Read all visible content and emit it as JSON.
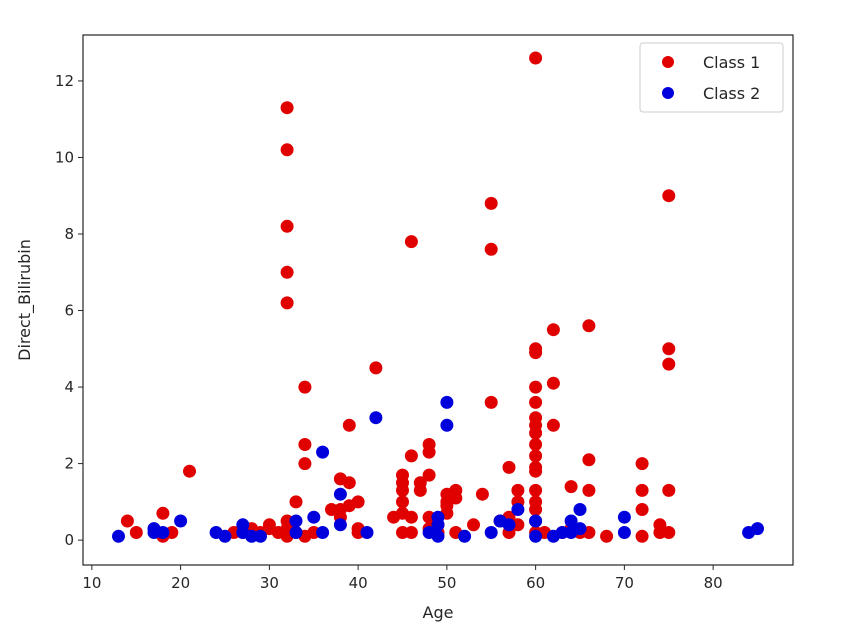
{
  "chart_data": {
    "type": "scatter",
    "title": "",
    "xlabel": "Age",
    "ylabel": "Direct_Bilirubin",
    "xlim": [
      9,
      89
    ],
    "ylim": [
      -0.65,
      13.2
    ],
    "xticks": [
      10,
      20,
      30,
      40,
      50,
      60,
      70,
      80
    ],
    "yticks": [
      0,
      2,
      4,
      6,
      8,
      10,
      12
    ],
    "grid": false,
    "legend": "top-right",
    "series": [
      {
        "name": "Class 1",
        "color": "#e00000",
        "points": [
          [
            14,
            0.5
          ],
          [
            15,
            0.2
          ],
          [
            18,
            0.7
          ],
          [
            18,
            0.1
          ],
          [
            19,
            0.2
          ],
          [
            21,
            1.8
          ],
          [
            26,
            0.2
          ],
          [
            27,
            0.2
          ],
          [
            28,
            0.3
          ],
          [
            29,
            0.2
          ],
          [
            30,
            0.3
          ],
          [
            30,
            0.4
          ],
          [
            31,
            0.2
          ],
          [
            32,
            0.1
          ],
          [
            32,
            0.2
          ],
          [
            32,
            0.3
          ],
          [
            32,
            0.5
          ],
          [
            32,
            11.3
          ],
          [
            32,
            10.2
          ],
          [
            32,
            8.2
          ],
          [
            32,
            7.0
          ],
          [
            32,
            6.2
          ],
          [
            33,
            1.0
          ],
          [
            33,
            0.2
          ],
          [
            34,
            0.1
          ],
          [
            34,
            4.0
          ],
          [
            34,
            2.5
          ],
          [
            34,
            2.0
          ],
          [
            35,
            0.2
          ],
          [
            37,
            0.8
          ],
          [
            38,
            1.6
          ],
          [
            38,
            0.8
          ],
          [
            38,
            0.6
          ],
          [
            39,
            3.0
          ],
          [
            39,
            1.5
          ],
          [
            39,
            0.9
          ],
          [
            40,
            1.0
          ],
          [
            40,
            0.3
          ],
          [
            40,
            0.2
          ],
          [
            42,
            4.5
          ],
          [
            44,
            0.6
          ],
          [
            45,
            1.7
          ],
          [
            45,
            1.5
          ],
          [
            45,
            1.3
          ],
          [
            45,
            1.0
          ],
          [
            45,
            0.7
          ],
          [
            45,
            0.2
          ],
          [
            46,
            7.8
          ],
          [
            46,
            2.2
          ],
          [
            46,
            0.6
          ],
          [
            46,
            0.2
          ],
          [
            47,
            1.5
          ],
          [
            47,
            1.3
          ],
          [
            48,
            2.5
          ],
          [
            48,
            2.3
          ],
          [
            48,
            1.7
          ],
          [
            48,
            0.6
          ],
          [
            48,
            0.3
          ],
          [
            49,
            0.4
          ],
          [
            49,
            0.2
          ],
          [
            50,
            1.2
          ],
          [
            50,
            1.0
          ],
          [
            50,
            0.9
          ],
          [
            50,
            0.7
          ],
          [
            51,
            1.3
          ],
          [
            51,
            1.1
          ],
          [
            51,
            0.2
          ],
          [
            53,
            0.4
          ],
          [
            54,
            1.2
          ],
          [
            55,
            8.8
          ],
          [
            55,
            7.6
          ],
          [
            55,
            3.6
          ],
          [
            56,
            0.5
          ],
          [
            57,
            1.9
          ],
          [
            57,
            0.6
          ],
          [
            57,
            0.2
          ],
          [
            58,
            1.3
          ],
          [
            58,
            1.0
          ],
          [
            58,
            0.4
          ],
          [
            60,
            12.6
          ],
          [
            60,
            5.0
          ],
          [
            60,
            4.9
          ],
          [
            60,
            4.0
          ],
          [
            60,
            3.6
          ],
          [
            60,
            3.2
          ],
          [
            60,
            3.0
          ],
          [
            60,
            2.8
          ],
          [
            60,
            2.5
          ],
          [
            60,
            2.2
          ],
          [
            60,
            1.9
          ],
          [
            60,
            1.8
          ],
          [
            60,
            1.3
          ],
          [
            60,
            1.0
          ],
          [
            60,
            0.8
          ],
          [
            60,
            0.5
          ],
          [
            60,
            0.2
          ],
          [
            61,
            0.2
          ],
          [
            62,
            5.5
          ],
          [
            62,
            4.1
          ],
          [
            62,
            3.0
          ],
          [
            63,
            0.2
          ],
          [
            64,
            1.4
          ],
          [
            64,
            0.3
          ],
          [
            65,
            0.2
          ],
          [
            66,
            5.6
          ],
          [
            66,
            2.1
          ],
          [
            66,
            1.3
          ],
          [
            66,
            0.2
          ],
          [
            68,
            0.1
          ],
          [
            72,
            2.0
          ],
          [
            72,
            1.3
          ],
          [
            72,
            0.8
          ],
          [
            72,
            0.1
          ],
          [
            74,
            0.4
          ],
          [
            74,
            0.2
          ],
          [
            75,
            9.0
          ],
          [
            75,
            5.0
          ],
          [
            75,
            4.6
          ],
          [
            75,
            1.3
          ],
          [
            75,
            0.2
          ]
        ]
      },
      {
        "name": "Class 2",
        "color": "#0000dd",
        "points": [
          [
            13,
            0.1
          ],
          [
            17,
            0.3
          ],
          [
            17,
            0.2
          ],
          [
            18,
            0.2
          ],
          [
            20,
            0.5
          ],
          [
            24,
            0.2
          ],
          [
            25,
            0.1
          ],
          [
            27,
            0.4
          ],
          [
            27,
            0.2
          ],
          [
            28,
            0.1
          ],
          [
            29,
            0.1
          ],
          [
            33,
            0.5
          ],
          [
            33,
            0.2
          ],
          [
            35,
            0.6
          ],
          [
            36,
            2.3
          ],
          [
            36,
            0.2
          ],
          [
            38,
            1.2
          ],
          [
            38,
            0.4
          ],
          [
            41,
            0.2
          ],
          [
            42,
            3.2
          ],
          [
            48,
            0.2
          ],
          [
            49,
            0.6
          ],
          [
            49,
            0.4
          ],
          [
            49,
            0.1
          ],
          [
            50,
            3.6
          ],
          [
            50,
            3.0
          ],
          [
            52,
            0.1
          ],
          [
            55,
            0.2
          ],
          [
            56,
            0.5
          ],
          [
            57,
            0.4
          ],
          [
            58,
            0.8
          ],
          [
            60,
            0.5
          ],
          [
            60,
            0.1
          ],
          [
            62,
            0.1
          ],
          [
            63,
            0.2
          ],
          [
            64,
            0.5
          ],
          [
            64,
            0.2
          ],
          [
            65,
            0.8
          ],
          [
            65,
            0.3
          ],
          [
            70,
            0.6
          ],
          [
            70,
            0.2
          ],
          [
            84,
            0.2
          ],
          [
            85,
            0.3
          ]
        ]
      }
    ]
  }
}
